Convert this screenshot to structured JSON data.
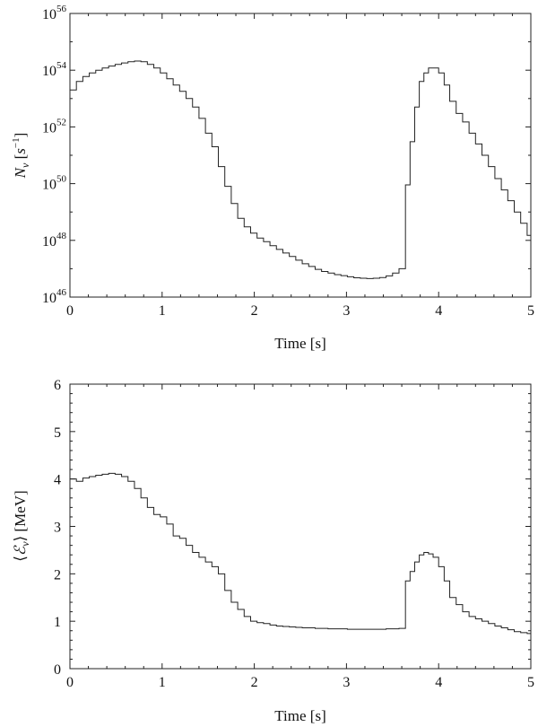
{
  "chart_data": [
    {
      "type": "line",
      "step": true,
      "xlabel": "Time [s]",
      "ylabel": "N_ν [s^-1]",
      "yscale": "log",
      "xlim": [
        0,
        5
      ],
      "ylim": [
        1e+46,
        1e+56
      ],
      "xticks": [
        0,
        1,
        2,
        3,
        4,
        5
      ],
      "yticks_exponent": [
        46,
        48,
        50,
        52,
        54,
        56
      ],
      "ytick_base": "10",
      "grid": false,
      "series": [
        {
          "x": [
            0,
            0.07,
            0.14,
            0.21,
            0.28,
            0.35,
            0.42,
            0.49,
            0.56,
            0.63,
            0.7,
            0.77,
            0.84,
            0.91,
            0.98,
            1.05,
            1.12,
            1.19,
            1.26,
            1.33,
            1.4,
            1.47,
            1.54,
            1.61,
            1.68,
            1.75,
            1.82,
            1.89,
            1.96,
            2.03,
            2.1,
            2.17,
            2.24,
            2.31,
            2.38,
            2.45,
            2.52,
            2.59,
            2.66,
            2.73,
            2.8,
            2.87,
            2.94,
            3.01,
            3.08,
            3.15,
            3.22,
            3.29,
            3.36,
            3.43,
            3.5,
            3.57,
            3.64,
            3.69,
            3.74,
            3.79,
            3.84,
            3.89,
            3.94,
            4.0,
            4.06,
            4.12,
            4.19,
            4.26,
            4.33,
            4.4,
            4.47,
            4.54,
            4.61,
            4.68,
            4.75,
            4.82,
            4.89,
            4.96
          ],
          "y": [
            2e+53,
            4e+53,
            6e+53,
            8e+53,
            1e+54,
            1.2e+54,
            1.4e+54,
            1.6e+54,
            1.8e+54,
            2e+54,
            2.1e+54,
            2e+54,
            1.6e+54,
            1.2e+54,
            8e+53,
            5e+53,
            3e+53,
            1.8e+53,
            1e+53,
            5e+52,
            2e+52,
            6e+51,
            2e+51,
            4e+50,
            8e+49,
            2e+49,
            6e+48,
            3e+48,
            1.8e+48,
            1.2e+48,
            9e+47,
            6.5e+47,
            4.8e+47,
            3.6e+47,
            2.7e+47,
            2e+47,
            1.5e+47,
            1.2e+47,
            9.5e+46,
            8e+46,
            7e+46,
            6.2e+46,
            5.7e+46,
            5.2e+46,
            4.8e+46,
            4.6e+46,
            4.5e+46,
            4.6e+46,
            4.9e+46,
            5.6e+46,
            7e+46,
            1e+47,
            9e+49,
            3e+51,
            5e+52,
            4e+53,
            8e+53,
            1.2e+54,
            1.2e+54,
            8e+53,
            3e+53,
            8e+52,
            3e+52,
            1.5e+52,
            6e+51,
            2.5e+51,
            1e+51,
            4e+50,
            1.5e+50,
            6e+49,
            2.5e+49,
            1e+49,
            4e+48,
            1.5e+48
          ]
        }
      ]
    },
    {
      "type": "line",
      "step": true,
      "xlabel": "Time [s]",
      "ylabel": "⟨ℰ_ν⟩ [MeV]",
      "xlim": [
        0,
        5
      ],
      "ylim": [
        0,
        6
      ],
      "xticks": [
        0,
        1,
        2,
        3,
        4,
        5
      ],
      "yticks": [
        0,
        1,
        2,
        3,
        4,
        5,
        6
      ],
      "grid": false,
      "series": [
        {
          "x": [
            0,
            0.07,
            0.14,
            0.21,
            0.28,
            0.35,
            0.42,
            0.49,
            0.56,
            0.63,
            0.7,
            0.77,
            0.84,
            0.91,
            0.98,
            1.05,
            1.12,
            1.19,
            1.26,
            1.33,
            1.4,
            1.47,
            1.54,
            1.61,
            1.68,
            1.75,
            1.82,
            1.89,
            1.96,
            2.03,
            2.1,
            2.17,
            2.24,
            2.31,
            2.38,
            2.45,
            2.52,
            2.59,
            2.66,
            2.73,
            2.8,
            2.87,
            2.94,
            3.01,
            3.08,
            3.15,
            3.22,
            3.29,
            3.36,
            3.43,
            3.5,
            3.57,
            3.64,
            3.69,
            3.74,
            3.79,
            3.84,
            3.89,
            3.94,
            4.0,
            4.06,
            4.12,
            4.19,
            4.26,
            4.33,
            4.4,
            4.47,
            4.54,
            4.61,
            4.68,
            4.75,
            4.82,
            4.89,
            4.96
          ],
          "y": [
            4.0,
            3.95,
            4.02,
            4.05,
            4.08,
            4.1,
            4.12,
            4.1,
            4.05,
            3.95,
            3.8,
            3.6,
            3.4,
            3.25,
            3.2,
            3.05,
            2.8,
            2.75,
            2.6,
            2.45,
            2.35,
            2.25,
            2.15,
            2.0,
            1.65,
            1.4,
            1.25,
            1.1,
            1.0,
            0.97,
            0.95,
            0.92,
            0.9,
            0.89,
            0.88,
            0.87,
            0.86,
            0.86,
            0.85,
            0.85,
            0.84,
            0.84,
            0.84,
            0.83,
            0.83,
            0.83,
            0.83,
            0.83,
            0.83,
            0.84,
            0.84,
            0.85,
            1.85,
            2.05,
            2.25,
            2.4,
            2.45,
            2.42,
            2.35,
            2.15,
            1.85,
            1.5,
            1.35,
            1.2,
            1.1,
            1.05,
            1.0,
            0.95,
            0.9,
            0.86,
            0.82,
            0.78,
            0.76,
            0.74
          ]
        }
      ]
    }
  ]
}
